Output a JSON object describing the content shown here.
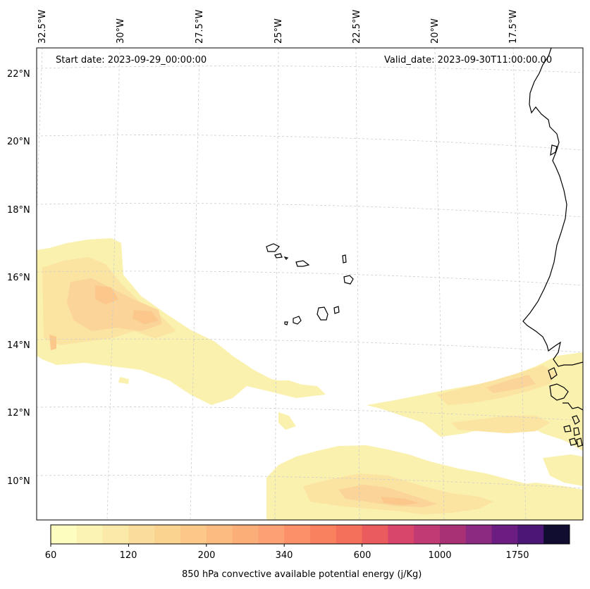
{
  "map": {
    "start_date": "Start date: 2023-09-29_00:00:00",
    "valid_date": "Valid_date: 2023-09-30T11:00:00.00",
    "lon_labels": [
      "32.5°W",
      "30°W",
      "27.5°W",
      "25°W",
      "22.5°W",
      "20°W",
      "17.5°W"
    ],
    "lat_labels": [
      "22°N",
      "20°N",
      "18°N",
      "16°N",
      "14°N",
      "12°N",
      "10°N"
    ],
    "grid": true,
    "coastline_color": "#000000",
    "ocean_color": "#ffffff"
  },
  "colorbar": {
    "label": "850 hPa convective available potential energy (j/Kg)",
    "tick_labels": [
      "60",
      "120",
      "200",
      "340",
      "600",
      "1000",
      "1750"
    ],
    "colors": [
      "#fcfdbf",
      "#fbf3b4",
      "#fbe9a9",
      "#fadd9c",
      "#fbd390",
      "#fcc888",
      "#fcbb80",
      "#fcae79",
      "#fca173",
      "#fc9169",
      "#fa8160",
      "#f5705b",
      "#ea5b5e",
      "#d8466c",
      "#c13a73",
      "#a83176",
      "#8c2981",
      "#6b1d81",
      "#4c1676",
      "#110d31"
    ]
  }
}
